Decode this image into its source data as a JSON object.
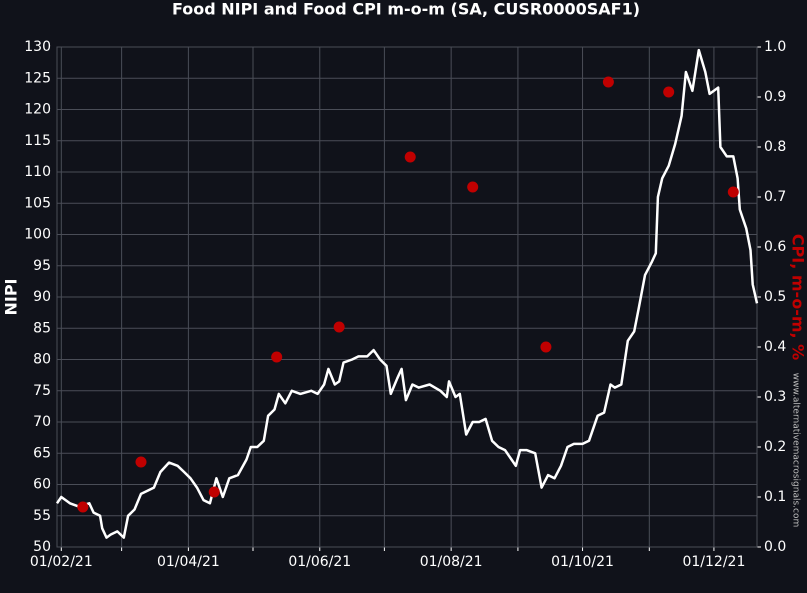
{
  "chart_data": {
    "type": "line",
    "title": "Food NIPI and Food CPI m-o-m (SA, CUSR0000SAF1)",
    "ylabel": "NIPI",
    "y2label": "CPI, m-o-m, %",
    "watermark": "www.alternativemacrosignals.com",
    "background": "#10121a",
    "grid": true,
    "xlim": [
      "2021-01-30",
      "2021-12-21"
    ],
    "xticks": [
      {
        "value": "2021-02-01",
        "label": "01/02/21"
      },
      {
        "value": "2021-03-01",
        "label": null
      },
      {
        "value": "2021-04-01",
        "label": "01/04/21"
      },
      {
        "value": "2021-05-01",
        "label": null
      },
      {
        "value": "2021-06-01",
        "label": "01/06/21"
      },
      {
        "value": "2021-07-01",
        "label": null
      },
      {
        "value": "2021-08-01",
        "label": "01/08/21"
      },
      {
        "value": "2021-09-01",
        "label": null
      },
      {
        "value": "2021-10-01",
        "label": "01/10/21"
      },
      {
        "value": "2021-11-01",
        "label": null
      },
      {
        "value": "2021-12-01",
        "label": "01/12/21"
      }
    ],
    "ylim": [
      50,
      130
    ],
    "yticks": [
      50,
      55,
      60,
      65,
      70,
      75,
      80,
      85,
      90,
      95,
      100,
      105,
      110,
      115,
      120,
      125,
      130
    ],
    "y2lim": [
      0,
      1
    ],
    "y2ticks": [
      {
        "value": 0,
        "label": "0.0"
      },
      0.1,
      0.2,
      0.3,
      0.4,
      0.5,
      0.6,
      0.7,
      0.8,
      0.9,
      {
        "value": 1,
        "label": "1.0"
      }
    ],
    "series": [
      {
        "type": "line",
        "color": "#ffffff",
        "x": [
          "2021-01-30",
          "2021-02-01",
          "2021-02-05",
          "2021-02-09",
          "2021-02-14",
          "2021-02-16",
          "2021-02-19",
          "2021-02-20",
          "2021-02-22",
          "2021-02-24",
          "2021-02-27",
          "2021-03-02",
          "2021-03-04",
          "2021-03-07",
          "2021-03-10",
          "2021-03-13",
          "2021-03-16",
          "2021-03-19",
          "2021-03-23",
          "2021-03-27",
          "2021-03-30",
          "2021-04-02",
          "2021-04-05",
          "2021-04-08",
          "2021-04-11",
          "2021-04-14",
          "2021-04-17",
          "2021-04-20",
          "2021-04-24",
          "2021-04-28",
          "2021-04-30",
          "2021-05-03",
          "2021-05-06",
          "2021-05-08",
          "2021-05-11",
          "2021-05-13",
          "2021-05-16",
          "2021-05-19",
          "2021-05-23",
          "2021-05-28",
          "2021-05-31",
          "2021-06-03",
          "2021-06-05",
          "2021-06-08",
          "2021-06-10",
          "2021-06-12",
          "2021-06-16",
          "2021-06-19",
          "2021-06-23",
          "2021-06-26",
          "2021-06-29",
          "2021-07-02",
          "2021-07-04",
          "2021-07-07",
          "2021-07-09",
          "2021-07-11",
          "2021-07-14",
          "2021-07-17",
          "2021-07-22",
          "2021-07-27",
          "2021-07-30",
          "2021-07-31",
          "2021-08-03",
          "2021-08-05",
          "2021-08-08",
          "2021-08-11",
          "2021-08-14",
          "2021-08-17",
          "2021-08-20",
          "2021-08-23",
          "2021-08-26",
          "2021-08-29",
          "2021-08-31",
          "2021-09-02",
          "2021-09-05",
          "2021-09-09",
          "2021-09-12",
          "2021-09-15",
          "2021-09-18",
          "2021-09-21",
          "2021-09-24",
          "2021-09-27",
          "2021-10-01",
          "2021-10-04",
          "2021-10-08",
          "2021-10-11",
          "2021-10-14",
          "2021-10-16",
          "2021-10-19",
          "2021-10-22",
          "2021-10-25",
          "2021-10-27",
          "2021-10-30",
          "2021-11-02",
          "2021-11-04",
          "2021-11-05",
          "2021-11-07",
          "2021-11-10",
          "2021-11-13",
          "2021-11-16",
          "2021-11-18",
          "2021-11-21",
          "2021-11-24",
          "2021-11-27",
          "2021-11-29",
          "2021-12-03",
          "2021-12-04",
          "2021-12-07",
          "2021-12-10",
          "2021-12-12",
          "2021-12-13",
          "2021-12-16",
          "2021-12-18",
          "2021-12-19",
          "2021-12-21"
        ],
        "values": [
          57,
          58,
          57,
          56.5,
          57,
          55.5,
          55,
          53,
          51.5,
          52,
          52.5,
          51.5,
          55,
          56,
          58.5,
          59,
          59.5,
          62,
          63.5,
          63,
          62,
          61,
          59.5,
          57.5,
          57,
          61,
          58,
          61,
          61.5,
          64,
          66,
          66,
          67,
          71,
          72,
          74.5,
          73,
          75,
          74.5,
          75,
          74.5,
          76,
          78.5,
          76,
          76.5,
          79.5,
          80,
          80.5,
          80.5,
          81.5,
          80,
          79,
          74.5,
          77,
          78.5,
          73.5,
          76,
          75.5,
          76,
          75,
          74,
          76.5,
          74,
          74.5,
          68,
          70,
          70,
          70.5,
          67,
          66,
          65.5,
          64,
          63,
          65.5,
          65.5,
          65,
          59.5,
          61.5,
          61,
          63,
          66,
          66.5,
          66.5,
          67,
          71,
          71.5,
          76,
          75.5,
          76,
          83,
          84.5,
          88,
          93.5,
          95.5,
          97,
          106,
          109,
          111,
          114.5,
          119,
          126,
          123,
          129.5,
          126,
          122.5,
          123.5,
          114,
          112.5,
          112.5,
          109,
          104,
          101,
          97.5,
          92,
          89
        ]
      },
      {
        "type": "scatter",
        "axis": "y2",
        "color": "#c00000",
        "x": [
          "2021-02-11",
          "2021-03-10",
          "2021-04-13",
          "2021-05-12",
          "2021-06-10",
          "2021-07-13",
          "2021-08-11",
          "2021-09-14",
          "2021-10-13",
          "2021-11-10",
          "2021-12-10"
        ],
        "values": [
          0.08,
          0.17,
          0.11,
          0.38,
          0.44,
          0.78,
          0.72,
          0.4,
          0.93,
          0.91,
          0.71
        ]
      }
    ]
  }
}
